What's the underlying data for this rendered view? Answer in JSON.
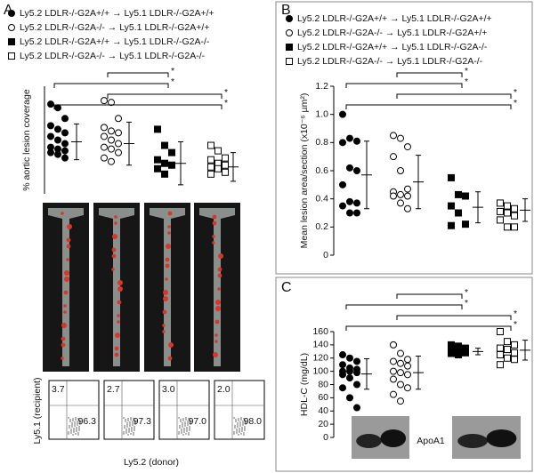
{
  "panel_labels": [
    "A",
    "B",
    "C"
  ],
  "chart_data": [
    {
      "type": "dotplot",
      "y_label": "% aortic lesion coverage",
      "ylim": [
        0,
        60
      ],
      "legend": [
        {
          "label": "Ly5.2 LDLR-/-G2A+/+ → Ly5.1 LDLR-/-G2A+/+",
          "marker": "circle",
          "filled": true
        },
        {
          "label": "Ly5.2 LDLR-/-G2A-/- → Ly5.1 LDLR-/-G2A+/+",
          "marker": "circle",
          "filled": false
        },
        {
          "label": "Ly5.2 LDLR-/-G2A+/+ → Ly5.1 LDLR-/-G2A-/-",
          "marker": "square",
          "filled": true
        },
        {
          "label": "Ly5.2 LDLR-/-G2A-/- → Ly5.1 LDLR-/-G2A-/-",
          "marker": "square",
          "filled": false
        }
      ],
      "groups": [
        {
          "marker": "circle",
          "filled": true,
          "values": [
            50,
            48,
            42,
            38,
            36,
            34,
            32,
            30,
            28,
            26,
            25,
            24,
            23,
            22,
            20
          ],
          "mean": 29,
          "sd": 10
        },
        {
          "marker": "circle",
          "filled": false,
          "values": [
            52,
            51,
            42,
            37,
            35,
            34,
            32,
            30,
            28,
            26,
            25,
            23,
            20,
            18
          ],
          "mean": 28,
          "sd": 12
        },
        {
          "marker": "square",
          "filled": true,
          "values": [
            36,
            27,
            23,
            19,
            17,
            16,
            14,
            11
          ],
          "mean": 17,
          "sd": 12
        },
        {
          "marker": "square",
          "filled": false,
          "values": [
            27,
            24,
            20,
            19,
            17,
            16,
            15,
            14,
            12,
            11
          ],
          "mean": 15,
          "sd": 8
        }
      ],
      "brackets": [
        {
          "groups": [
            1,
            2
          ],
          "label": "*"
        },
        {
          "groups": [
            0,
            2
          ],
          "label": "*"
        },
        {
          "groups": [
            1,
            3
          ],
          "label": "*"
        },
        {
          "groups": [
            0,
            3
          ],
          "label": "*"
        }
      ]
    },
    {
      "type": "dotplot",
      "y_label": "Mean lesion area/section (x10⁻⁶ µm²)",
      "ylim": [
        0,
        1.2
      ],
      "yticks": [
        0,
        0.2,
        0.4,
        0.6,
        0.8,
        {
          "value": 1,
          "label": "1.0"
        },
        1.2
      ],
      "legend": [
        {
          "label": "Ly5.2 LDLR-/-G2A+/+ → Ly5.1 LDLR-/-G2A+/+",
          "marker": "circle",
          "filled": true
        },
        {
          "label": "Ly5.2 LDLR-/-G2A-/- → Ly5.1 LDLR-/-G2A+/+",
          "marker": "circle",
          "filled": false
        },
        {
          "label": "Ly5.2 LDLR-/-G2A+/+ → Ly5.1 LDLR-/-G2A-/-",
          "marker": "square",
          "filled": true
        },
        {
          "label": "Ly5.2 LDLR-/-G2A-/- → Ly5.1 LDLR-/-G2A-/-",
          "marker": "square",
          "filled": false
        }
      ],
      "groups": [
        {
          "marker": "circle",
          "filled": true,
          "values": [
            1.0,
            0.83,
            0.81,
            0.8,
            0.62,
            0.6,
            0.5,
            0.38,
            0.37,
            0.35,
            0.3,
            0.3
          ],
          "mean": 0.57,
          "sd": 0.24
        },
        {
          "marker": "circle",
          "filled": false,
          "values": [
            0.85,
            0.83,
            0.77,
            0.7,
            0.6,
            0.47,
            0.45,
            0.43,
            0.42,
            0.42,
            0.37,
            0.33
          ],
          "mean": 0.52,
          "sd": 0.19
        },
        {
          "marker": "square",
          "filled": true,
          "values": [
            0.55,
            0.43,
            0.42,
            0.35,
            0.3,
            0.22,
            0.21
          ],
          "mean": 0.34,
          "sd": 0.11
        },
        {
          "marker": "square",
          "filled": false,
          "values": [
            0.37,
            0.35,
            0.33,
            0.31,
            0.3,
            0.28,
            0.25,
            0.2,
            0.2
          ],
          "mean": 0.32,
          "sd": 0.08
        }
      ],
      "brackets": [
        {
          "groups": [
            1,
            2
          ],
          "label": "*"
        },
        {
          "groups": [
            0,
            2
          ],
          "label": "*"
        },
        {
          "groups": [
            1,
            3
          ],
          "label": "*"
        },
        {
          "groups": [
            0,
            3
          ],
          "label": "*"
        }
      ]
    },
    {
      "type": "dotplot",
      "y_label": "HDL-C (mg/dL)",
      "ylim": [
        0,
        160
      ],
      "yticks": [
        0,
        20,
        40,
        60,
        80,
        100,
        120,
        140,
        160
      ],
      "inset_label": "ApoA1",
      "groups": [
        {
          "marker": "circle",
          "filled": true,
          "values": [
            125,
            120,
            115,
            110,
            105,
            103,
            100,
            100,
            98,
            95,
            90,
            80,
            75,
            60,
            45
          ],
          "mean": 96,
          "sd": 23
        },
        {
          "marker": "circle",
          "filled": false,
          "values": [
            140,
            127,
            118,
            115,
            112,
            108,
            100,
            98,
            95,
            88,
            80,
            75,
            65,
            55
          ],
          "mean": 98,
          "sd": 25
        },
        {
          "marker": "square",
          "filled": true,
          "values": [
            140,
            138,
            135,
            132,
            130,
            128,
            127,
            125
          ],
          "mean": 130,
          "sd": 5
        },
        {
          "marker": "square",
          "filled": false,
          "values": [
            160,
            145,
            140,
            135,
            133,
            128,
            125,
            120,
            118,
            110
          ],
          "mean": 132,
          "sd": 15
        }
      ],
      "brackets": [
        {
          "groups": [
            1,
            2
          ],
          "label": "*"
        },
        {
          "groups": [
            0,
            2
          ],
          "label": "*"
        },
        {
          "groups": [
            1,
            3
          ],
          "label": "*"
        },
        {
          "groups": [
            0,
            3
          ],
          "label": "*"
        }
      ]
    }
  ],
  "flow_plots": {
    "y_label": "Ly5.1 (recipient)",
    "x_label": "Ly5.2 (donor)",
    "plots": [
      {
        "upper": "3.7",
        "lower": "96.3"
      },
      {
        "upper": "2.7",
        "lower": "97.3"
      },
      {
        "upper": "3.0",
        "lower": "97.0"
      },
      {
        "upper": "2.0",
        "lower": "98.0"
      }
    ]
  }
}
